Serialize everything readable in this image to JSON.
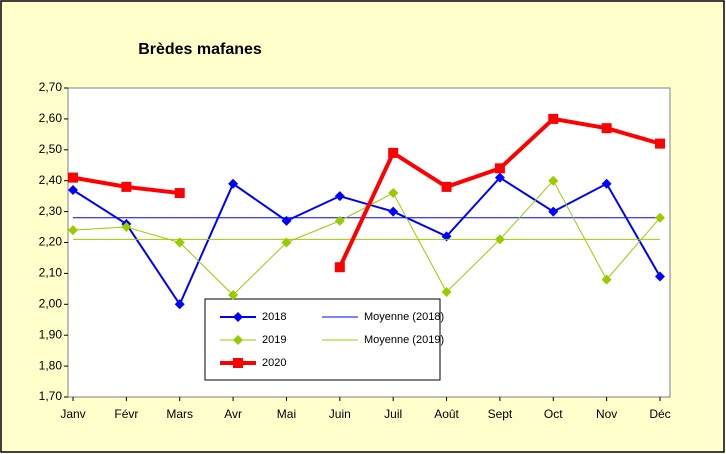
{
  "chart_data": {
    "type": "line",
    "title": "Brèdes mafanes",
    "categories": [
      "Janv",
      "Févr",
      "Mars",
      "Avr",
      "Mai",
      "Juin",
      "Juil",
      "Août",
      "Sept",
      "Oct",
      "Nov",
      "Déc"
    ],
    "series": [
      {
        "name": "2018",
        "color": "#0000FF",
        "marker": "diamond",
        "line_width": 2,
        "values": [
          2.37,
          2.26,
          2.0,
          2.39,
          2.27,
          2.35,
          2.3,
          2.22,
          2.41,
          2.3,
          2.39,
          2.09
        ]
      },
      {
        "name": "Moyenne (2018)",
        "color": "#0000FF",
        "marker": "none",
        "line_width": 1,
        "values": [
          2.28,
          2.28,
          2.28,
          2.28,
          2.28,
          2.28,
          2.28,
          2.28,
          2.28,
          2.28,
          2.28,
          2.28
        ]
      },
      {
        "name": "2019",
        "color": "#99CC00",
        "marker": "diamond",
        "line_width": 1,
        "values": [
          2.24,
          2.25,
          2.2,
          2.03,
          2.2,
          2.27,
          2.36,
          2.04,
          2.21,
          2.4,
          2.08,
          2.28
        ]
      },
      {
        "name": "Moyenne (2019)",
        "color": "#99CC00",
        "marker": "none",
        "line_width": 1,
        "values": [
          2.21,
          2.21,
          2.21,
          2.21,
          2.21,
          2.21,
          2.21,
          2.21,
          2.21,
          2.21,
          2.21,
          2.21
        ]
      },
      {
        "name": "2020",
        "color": "#FF0000",
        "marker": "square",
        "line_width": 4,
        "values": [
          2.41,
          2.38,
          2.36,
          null,
          null,
          2.12,
          2.49,
          2.38,
          2.44,
          2.6,
          2.57,
          2.52
        ]
      }
    ],
    "ylim": [
      1.7,
      2.7
    ],
    "yticks": [
      {
        "value": 1.7,
        "label": "1,70"
      },
      {
        "value": 1.8,
        "label": "1,80"
      },
      {
        "value": 1.9,
        "label": "1,90"
      },
      {
        "value": 2.0,
        "label": "2,00"
      },
      {
        "value": 2.1,
        "label": "2,10"
      },
      {
        "value": 2.2,
        "label": "2,20"
      },
      {
        "value": 2.3,
        "label": "2,30"
      },
      {
        "value": 2.4,
        "label": "2,40"
      },
      {
        "value": 2.5,
        "label": "2,50"
      },
      {
        "value": 2.6,
        "label": "2,60"
      },
      {
        "value": 2.7,
        "label": "2,70"
      }
    ],
    "grid": false
  }
}
